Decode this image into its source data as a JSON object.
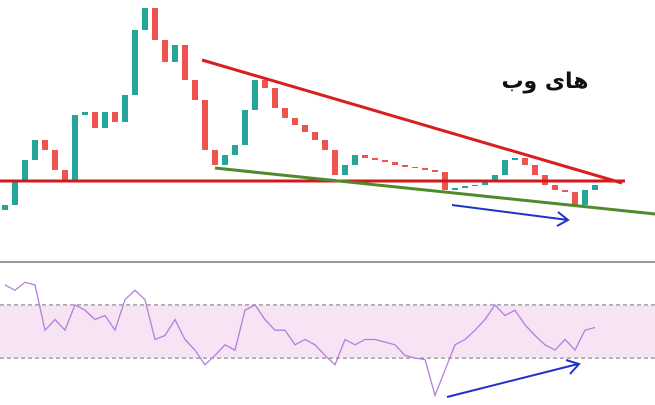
{
  "chart_data": {
    "type": "candlestick",
    "annotation": "های وب",
    "ylim": [
      0,
      260
    ],
    "up_color": "#26a69a",
    "down_color": "#ef5350",
    "open": [
      50,
      55,
      80,
      100,
      120,
      110,
      90,
      80,
      145,
      148,
      132,
      148,
      138,
      165,
      230,
      252,
      220,
      198,
      215,
      180,
      160,
      110,
      95,
      105,
      115,
      150,
      180,
      172,
      152,
      142,
      135,
      128,
      120,
      110,
      85,
      95,
      105,
      102,
      100,
      98,
      95,
      93,
      92,
      90,
      88,
      70,
      72,
      74,
      75,
      78,
      85,
      100,
      102,
      95,
      85,
      75,
      70,
      68,
      55,
      70
    ],
    "close": [
      55,
      80,
      100,
      120,
      110,
      90,
      80,
      145,
      148,
      132,
      148,
      138,
      165,
      230,
      252,
      220,
      198,
      215,
      180,
      160,
      110,
      95,
      105,
      115,
      150,
      180,
      172,
      152,
      142,
      135,
      128,
      120,
      110,
      85,
      95,
      105,
      102,
      100,
      98,
      95,
      93,
      92,
      90,
      88,
      70,
      72,
      74,
      75,
      78,
      85,
      100,
      102,
      95,
      85,
      75,
      70,
      68,
      55,
      70,
      75
    ],
    "indicator": {
      "type": "line",
      "color": "#b57edc",
      "ylim": [
        0,
        100
      ],
      "levels": [
        30,
        70
      ],
      "values": [
        85,
        81,
        87,
        85,
        51,
        59,
        51,
        70,
        66,
        59,
        62,
        51,
        74,
        81,
        74,
        44,
        47,
        59,
        44,
        36,
        25,
        32,
        40,
        36,
        66,
        70,
        59,
        51,
        51,
        40,
        44,
        40,
        32,
        25,
        44,
        40,
        44,
        44,
        42,
        40,
        32,
        30,
        29,
        2,
        21,
        40,
        44,
        51,
        59,
        70,
        62,
        66,
        55,
        47,
        40,
        36,
        44,
        36,
        51,
        53
      ]
    }
  }
}
